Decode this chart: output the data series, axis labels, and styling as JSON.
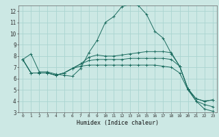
{
  "title": "",
  "xlabel": "Humidex (Indice chaleur)",
  "xlim": [
    -0.5,
    23.5
  ],
  "ylim": [
    3,
    12.5
  ],
  "xticks": [
    0,
    1,
    2,
    3,
    4,
    5,
    6,
    7,
    8,
    9,
    10,
    11,
    12,
    13,
    14,
    15,
    16,
    17,
    18,
    19,
    20,
    21,
    22,
    23
  ],
  "yticks": [
    3,
    4,
    5,
    6,
    7,
    8,
    9,
    10,
    11,
    12
  ],
  "bg_color": "#cce8e4",
  "grid_color": "#aad4d0",
  "line_color": "#1a6b5e",
  "lines": [
    [
      7.7,
      8.2,
      6.6,
      6.6,
      6.4,
      6.3,
      6.2,
      6.9,
      8.3,
      9.4,
      11.0,
      11.5,
      12.4,
      12.6,
      12.5,
      11.7,
      10.2,
      9.6,
      8.2,
      7.1,
      5.1,
      4.0,
      3.3,
      3.1
    ],
    [
      7.7,
      6.5,
      6.5,
      6.5,
      6.3,
      6.5,
      6.9,
      7.3,
      7.9,
      8.1,
      8.0,
      8.0,
      8.1,
      8.2,
      8.3,
      8.4,
      8.4,
      8.4,
      8.3,
      7.1,
      5.1,
      4.2,
      4.0,
      4.1
    ],
    [
      7.7,
      6.5,
      6.5,
      6.5,
      6.3,
      6.5,
      6.9,
      7.3,
      7.6,
      7.7,
      7.7,
      7.7,
      7.7,
      7.8,
      7.8,
      7.8,
      7.8,
      7.8,
      7.7,
      7.1,
      5.1,
      4.2,
      4.0,
      4.1
    ],
    [
      7.7,
      6.5,
      6.5,
      6.5,
      6.3,
      6.5,
      6.9,
      7.1,
      7.2,
      7.2,
      7.2,
      7.2,
      7.2,
      7.2,
      7.2,
      7.2,
      7.2,
      7.1,
      7.0,
      6.5,
      5.0,
      4.0,
      3.7,
      3.5
    ]
  ]
}
